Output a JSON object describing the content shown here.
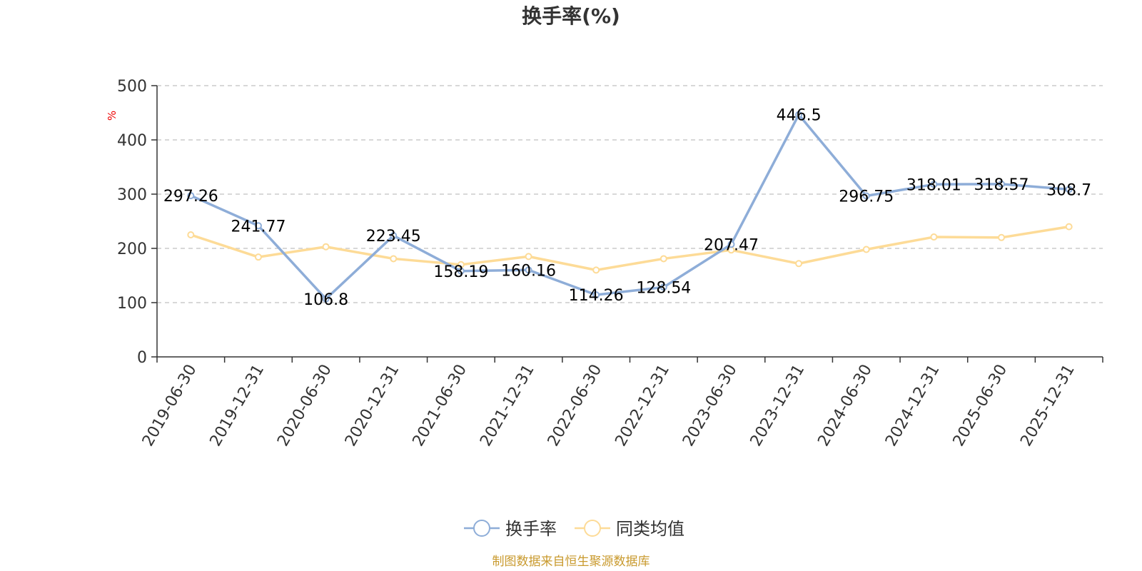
{
  "chart_data": {
    "type": "line",
    "title": "换手率(%)",
    "ylabel": "%",
    "categories": [
      "2019-06-30",
      "2019-12-31",
      "2020-06-30",
      "2020-12-31",
      "2021-06-30",
      "2021-12-31",
      "2022-06-30",
      "2022-12-31",
      "2023-06-30",
      "2023-12-31",
      "2024-06-30",
      "2024-12-31",
      "2025-06-30",
      "2025-12-31"
    ],
    "ylim": [
      0,
      500
    ],
    "yticks": [
      0,
      100,
      200,
      300,
      400,
      500
    ],
    "grid": true,
    "legend_position": "bottom",
    "series": [
      {
        "name": "换手率",
        "color": "#8eadd8",
        "values": [
          297.26,
          241.77,
          106.8,
          223.45,
          158.19,
          160.16,
          114.26,
          128.54,
          207.47,
          446.5,
          296.75,
          318.01,
          318.57,
          308.7
        ],
        "labels": [
          "297.26",
          "241.77",
          "106.8",
          "223.45",
          "158.19",
          "160.16",
          "114.26",
          "128.54",
          "207.47",
          "446.5",
          "296.75",
          "318.01",
          "318.57",
          "308.7"
        ]
      },
      {
        "name": "同类均值",
        "color": "#fddb97",
        "values": [
          225,
          184,
          203,
          181,
          170,
          185,
          160,
          181,
          197,
          172,
          198,
          221,
          220,
          240
        ]
      }
    ],
    "source": "制图数据来自恒生聚源数据库",
    "source_color": "#c99a2e"
  }
}
